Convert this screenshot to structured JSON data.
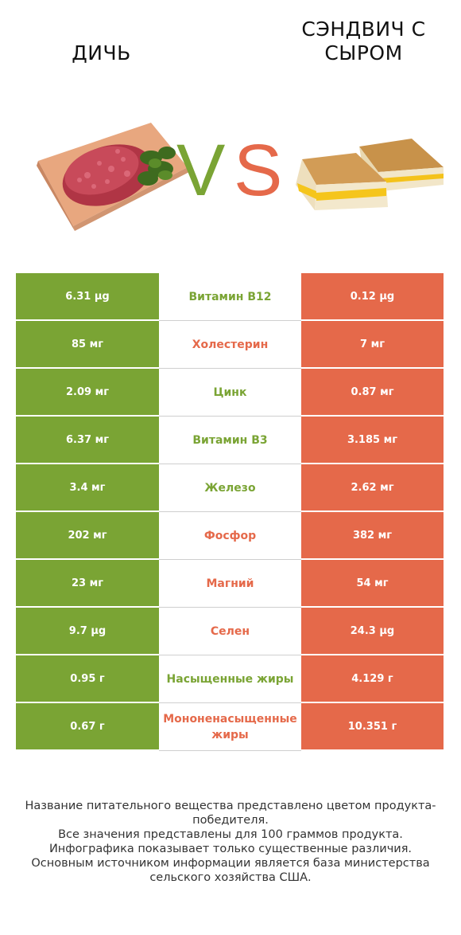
{
  "header": {
    "left_title": "ДИЧЬ",
    "right_title": "СЭНДВИЧ С СЫРОМ",
    "vs_v": "V",
    "vs_s": "S"
  },
  "colors": {
    "left_accent": "#7aa434",
    "right_accent": "#e5694a"
  },
  "images": {
    "left": "ground-meat-on-board-image",
    "right": "grilled-cheese-sandwich-image"
  },
  "rows": [
    {
      "left": "6.31 µg",
      "label": "Витамин B12",
      "right": "0.12 µg",
      "winner": "left"
    },
    {
      "left": "85 мг",
      "label": "Холестерин",
      "right": "7 мг",
      "winner": "right"
    },
    {
      "left": "2.09 мг",
      "label": "Цинк",
      "right": "0.87 мг",
      "winner": "left"
    },
    {
      "left": "6.37 мг",
      "label": "Витамин B3",
      "right": "3.185 мг",
      "winner": "left"
    },
    {
      "left": "3.4 мг",
      "label": "Железо",
      "right": "2.62 мг",
      "winner": "left"
    },
    {
      "left": "202 мг",
      "label": "Фосфор",
      "right": "382 мг",
      "winner": "right"
    },
    {
      "left": "23 мг",
      "label": "Магний",
      "right": "54 мг",
      "winner": "right"
    },
    {
      "left": "9.7 µg",
      "label": "Селен",
      "right": "24.3 µg",
      "winner": "right"
    },
    {
      "left": "0.95 г",
      "label": "Насыщенные жиры",
      "right": "4.129 г",
      "winner": "left"
    },
    {
      "left": "0.67 г",
      "label": "Мононенасыщенные жиры",
      "right": "10.351 г",
      "winner": "right"
    }
  ],
  "footer": {
    "line1": "Название питательного вещества представлено цветом продукта-победителя.",
    "line2": "Все значения представлены для 100 граммов продукта.",
    "line3": "Инфографика показывает только существенные различия.",
    "line4": "Основным источником информации является база министерства сельского хозяйства США."
  }
}
